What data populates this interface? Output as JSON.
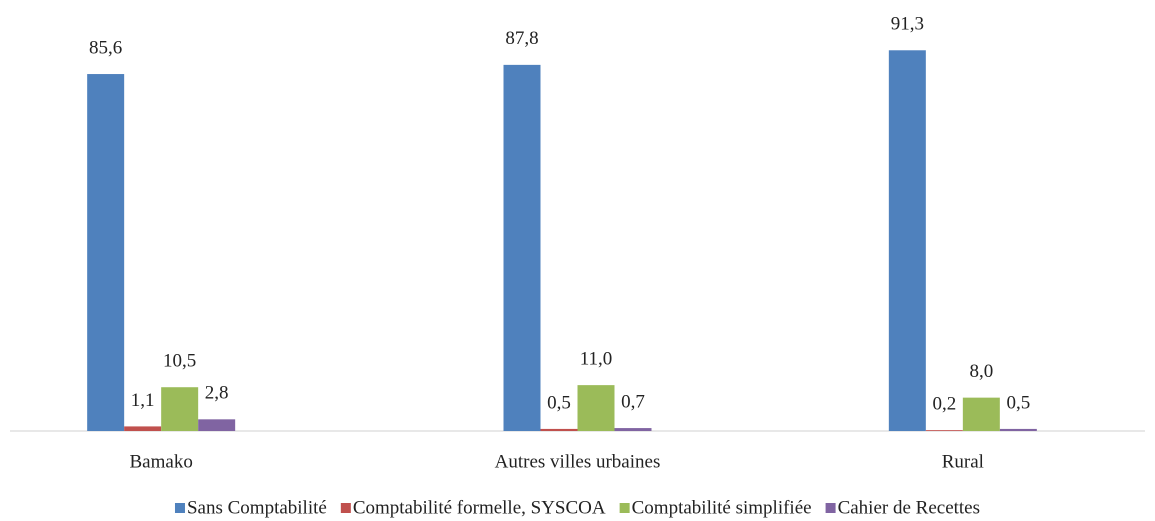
{
  "chart_data": {
    "type": "bar",
    "categories": [
      "Bamako",
      "Autres villes urbaines",
      "Rural"
    ],
    "series": [
      {
        "name": "Sans Comptabilité",
        "color": "#4f81bd",
        "values": [
          85.6,
          87.8,
          91.3
        ],
        "value_labels": [
          "85,6",
          "87,8",
          "91,3"
        ]
      },
      {
        "name": "Comptabilité formelle, SYSCOA",
        "color": "#c0504d",
        "values": [
          1.1,
          0.5,
          0.2
        ],
        "value_labels": [
          "1,1",
          "0,5",
          "0,2"
        ]
      },
      {
        "name": "Comptabilité simplifiée",
        "color": "#9bbb59",
        "values": [
          10.5,
          11.0,
          8.0
        ],
        "value_labels": [
          "10,5",
          "11,0",
          "8,0"
        ]
      },
      {
        "name": "Cahier de Recettes",
        "color": "#8064a2",
        "values": [
          2.8,
          0.7,
          0.5
        ],
        "value_labels": [
          "2,8",
          "0,7",
          "0,5"
        ]
      }
    ],
    "legend": "bottom"
  }
}
